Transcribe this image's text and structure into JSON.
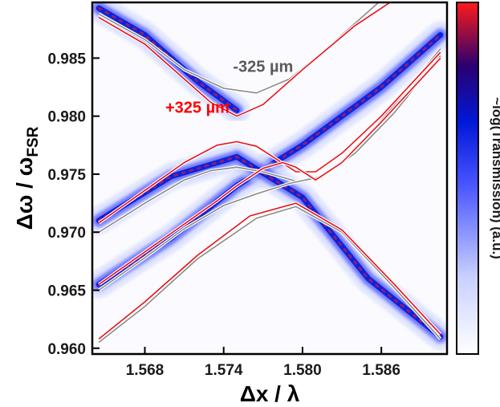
{
  "chart_data": {
    "type": "heatmap",
    "title": "",
    "xlabel": "Δx / λ",
    "ylabel_main": "Δω / ω",
    "ylabel_sub": "FSR",
    "xlim": [
      1.564,
      1.591
    ],
    "ylim": [
      0.9595,
      0.9898
    ],
    "xticks": [
      1.568,
      1.574,
      1.58,
      1.586
    ],
    "xtick_labels": [
      "1.568",
      "1.574",
      "1.580",
      "1.586"
    ],
    "yticks": [
      0.96,
      0.965,
      0.97,
      0.975,
      0.98,
      0.985
    ],
    "ytick_labels": [
      "0.960",
      "0.965",
      "0.970",
      "0.975",
      "0.980",
      "0.985"
    ],
    "colorbar": {
      "label": "~log(Transmission) (a.u.)",
      "colors": [
        "#ffffff",
        "#c8d0ff",
        "#4a55ff",
        "#0018d8",
        "#2a0070",
        "#ff1a1a"
      ]
    },
    "annotations": [
      {
        "text": "-325 µm",
        "color": "#5a5a5a",
        "x": 1.577,
        "y": 0.9838
      },
      {
        "text": "+325 µm",
        "color": "#ff0000",
        "x": 1.572,
        "y": 0.9803
      }
    ],
    "data_bands": [
      {
        "name": "anticrossing-upper-left",
        "x": [
          1.5645,
          1.568,
          1.572,
          1.575
        ],
        "y": [
          0.9893,
          0.987,
          0.983,
          0.9805
        ]
      },
      {
        "name": "diagonal-rising",
        "x": [
          1.5645,
          1.57,
          1.575,
          1.58,
          1.586,
          1.5905
        ],
        "y": [
          0.9655,
          0.9695,
          0.974,
          0.9775,
          0.9825,
          0.987
        ]
      },
      {
        "name": "diagonal-falling",
        "x": [
          1.5645,
          1.57,
          1.575,
          1.58,
          1.585,
          1.5905
        ],
        "y": [
          0.971,
          0.9748,
          0.9765,
          0.973,
          0.966,
          0.961
        ]
      }
    ],
    "series": [
      {
        "name": "+325 µm",
        "color": "#e8101a",
        "branches": [
          {
            "x": [
              1.5645,
              1.568,
              1.571,
              1.573,
              1.575,
              1.577,
              1.58,
              1.584,
              1.588,
              1.5905
            ],
            "y": [
              0.9885,
              0.9862,
              0.9832,
              0.9812,
              0.98,
              0.981,
              0.984,
              0.9878,
              0.9908,
              0.9922
            ]
          },
          {
            "x": [
              1.5645,
              1.568,
              1.571,
              1.5735,
              1.575,
              1.5765,
              1.578,
              1.5795,
              1.581,
              1.583,
              1.586,
              1.5905
            ],
            "y": [
              0.9708,
              0.9736,
              0.976,
              0.9775,
              0.9778,
              0.9774,
              0.9763,
              0.9752,
              0.9752,
              0.9768,
              0.98,
              0.9855
            ]
          },
          {
            "x": [
              1.5645,
              1.568,
              1.571,
              1.5735,
              1.575,
              1.577,
              1.5785,
              1.5795,
              1.581,
              1.583,
              1.586,
              1.5905
            ],
            "y": [
              0.9655,
              0.9683,
              0.9707,
              0.9727,
              0.974,
              0.9755,
              0.976,
              0.9756,
              0.9745,
              0.976,
              0.9795,
              0.985
            ]
          },
          {
            "x": [
              1.5645,
              1.568,
              1.572,
              1.576,
              1.5795,
              1.583,
              1.587,
              1.5905
            ],
            "y": [
              0.9608,
              0.964,
              0.968,
              0.9714,
              0.9725,
              0.9702,
              0.9655,
              0.9612
            ]
          }
        ]
      },
      {
        "name": "-325 µm",
        "color": "#8a8a8a",
        "branches": [
          {
            "x": [
              1.5645,
              1.568,
              1.571,
              1.574,
              1.5765,
              1.579,
              1.582,
              1.586,
              1.5905
            ],
            "y": [
              0.9888,
              0.9866,
              0.984,
              0.9824,
              0.982,
              0.9832,
              0.986,
              0.99,
              0.9932
            ]
          },
          {
            "x": [
              1.5645,
              1.568,
              1.571,
              1.573,
              1.575,
              1.577,
              1.5795,
              1.5815,
              1.584,
              1.587,
              1.5905
            ],
            "y": [
              0.97,
              0.9725,
              0.9745,
              0.9753,
              0.9756,
              0.9752,
              0.9744,
              0.9747,
              0.977,
              0.981,
              0.9858
            ]
          },
          {
            "x": [
              1.5645,
              1.568,
              1.571,
              1.574,
              1.5765,
              1.579,
              1.5815,
              1.584,
              1.587,
              1.5905
            ],
            "y": [
              0.965,
              0.9678,
              0.9703,
              0.9723,
              0.9733,
              0.9742,
              0.9748,
              0.9768,
              0.9803,
              0.9852
            ]
          },
          {
            "x": [
              1.5645,
              1.568,
              1.572,
              1.5765,
              1.5795,
              1.583,
              1.587,
              1.5905
            ],
            "y": [
              0.9605,
              0.9636,
              0.9677,
              0.9712,
              0.9722,
              0.97,
              0.9652,
              0.9608
            ]
          }
        ]
      }
    ]
  }
}
